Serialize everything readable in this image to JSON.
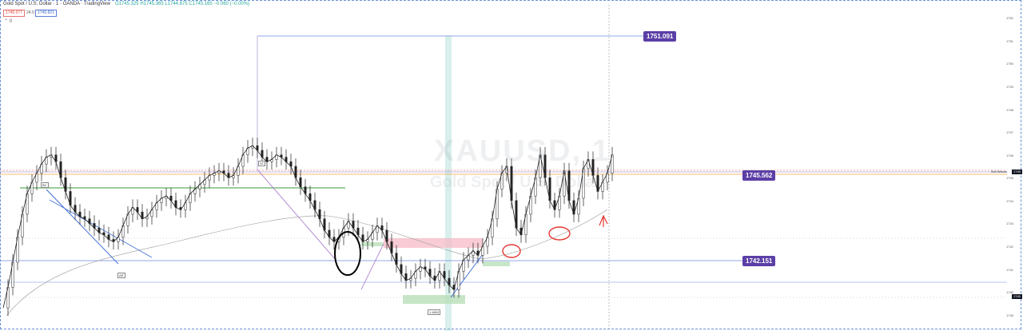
{
  "header": {
    "symbol": "Gold Spot / U.S. Dollar · 1 · OANDA · TradingView",
    "ohlc": "O1745.325 H1745.365 L1744.675 C1745.165 −0.060 (−0.00%)",
    "sell_price": "1745.577",
    "spread": "24.0",
    "buy_price": "1745.821",
    "toggle": "⌃ 0"
  },
  "watermark": {
    "ticker": "XAUUSD, 1",
    "name": "Gold Spot / U.S. Dollar"
  },
  "tags": {
    "high": "1751.091",
    "mid": "1745.562",
    "low": "1742.151"
  },
  "mini_labels": {
    "bc": "BC",
    "ar": "AR",
    "st": "ST",
    "lowbox": "1.4800"
  },
  "right_axis": {
    "sell_label": "Sell Waves",
    "last_tag": "1745",
    "low_tag": "1740"
  },
  "colors": {
    "candle": "#222222",
    "support": "#3f6fd8",
    "green": "#3a9a3a",
    "annotation": "#e53935",
    "marker": "#000000",
    "purple": "#a070c8",
    "tag_bg": "#5b3fa6"
  },
  "chart_data": {
    "type": "line",
    "ylim": [
      1738.5,
      1752.5
    ],
    "x": [
      0,
      6,
      12,
      18,
      24,
      30,
      36,
      42,
      48,
      54,
      60,
      66,
      72,
      78,
      84,
      90,
      96,
      102,
      108,
      114,
      120,
      126,
      132,
      138,
      144,
      150,
      156,
      162,
      168,
      174,
      180,
      186,
      192,
      198,
      204,
      210,
      216,
      222,
      228,
      234,
      240,
      246,
      252,
      258,
      264,
      270,
      276,
      282,
      288,
      294,
      300,
      306,
      312,
      318,
      324,
      330,
      336,
      342,
      348,
      354,
      360,
      366,
      372,
      378,
      384,
      390,
      396,
      402,
      408,
      414,
      420,
      426,
      432,
      438,
      444,
      450,
      456,
      462,
      468,
      474,
      480,
      486,
      492,
      498,
      504,
      510,
      516,
      522,
      528,
      534,
      540,
      546,
      552,
      558,
      564,
      570,
      576,
      582,
      588,
      594,
      600,
      606,
      612,
      618,
      624,
      630,
      636,
      642,
      648,
      654,
      660,
      666,
      672,
      678,
      684,
      690,
      696,
      702,
      708,
      714,
      720,
      726,
      732,
      738,
      744,
      750,
      756,
      762
    ],
    "series": [
      {
        "values": [
          1739.3,
          1740.2,
          1741.3,
          1742.4,
          1743.4,
          1744.3,
          1744.8,
          1745.2,
          1745.6,
          1745.9,
          1746.0,
          1745.7,
          1745.0,
          1744.4,
          1743.8,
          1743.5,
          1743.3,
          1743.2,
          1743.0,
          1742.8,
          1742.6,
          1742.5,
          1742.3,
          1742.2,
          1742.4,
          1742.9,
          1743.4,
          1743.7,
          1743.5,
          1743.2,
          1743.3,
          1743.6,
          1743.9,
          1744.1,
          1744.2,
          1744.0,
          1743.7,
          1743.6,
          1743.9,
          1744.3,
          1744.5,
          1744.7,
          1744.9,
          1745.1,
          1745.2,
          1745.3,
          1745.2,
          1745.0,
          1745.1,
          1745.5,
          1746.0,
          1746.3,
          1746.4,
          1746.2,
          1745.9,
          1745.7,
          1745.8,
          1746.0,
          1745.9,
          1745.7,
          1745.5,
          1745.0,
          1744.6,
          1744.3,
          1744.0,
          1743.6,
          1743.2,
          1742.7,
          1742.4,
          1742.2,
          1742.4,
          1742.8,
          1743.1,
          1742.8,
          1742.5,
          1742.2,
          1742.3,
          1742.6,
          1742.9,
          1742.7,
          1742.2,
          1741.7,
          1741.2,
          1740.8,
          1740.5,
          1740.6,
          1740.9,
          1741.1,
          1741.0,
          1740.7,
          1740.5,
          1740.9,
          1740.6,
          1740.3,
          1740.1,
          1740.9,
          1741.4,
          1741.6,
          1741.8,
          1741.6,
          1742.0,
          1742.4,
          1743.2,
          1744.5,
          1745.2,
          1745.5,
          1744.0,
          1742.8,
          1742.5,
          1743.4,
          1744.2,
          1745.0,
          1746.0,
          1745.0,
          1744.0,
          1743.6,
          1744.2,
          1745.3,
          1744.0,
          1743.4,
          1744.1,
          1745.4,
          1745.8,
          1745.1,
          1744.4,
          1744.8,
          1745.2,
          1746.0
        ]
      }
    ]
  }
}
